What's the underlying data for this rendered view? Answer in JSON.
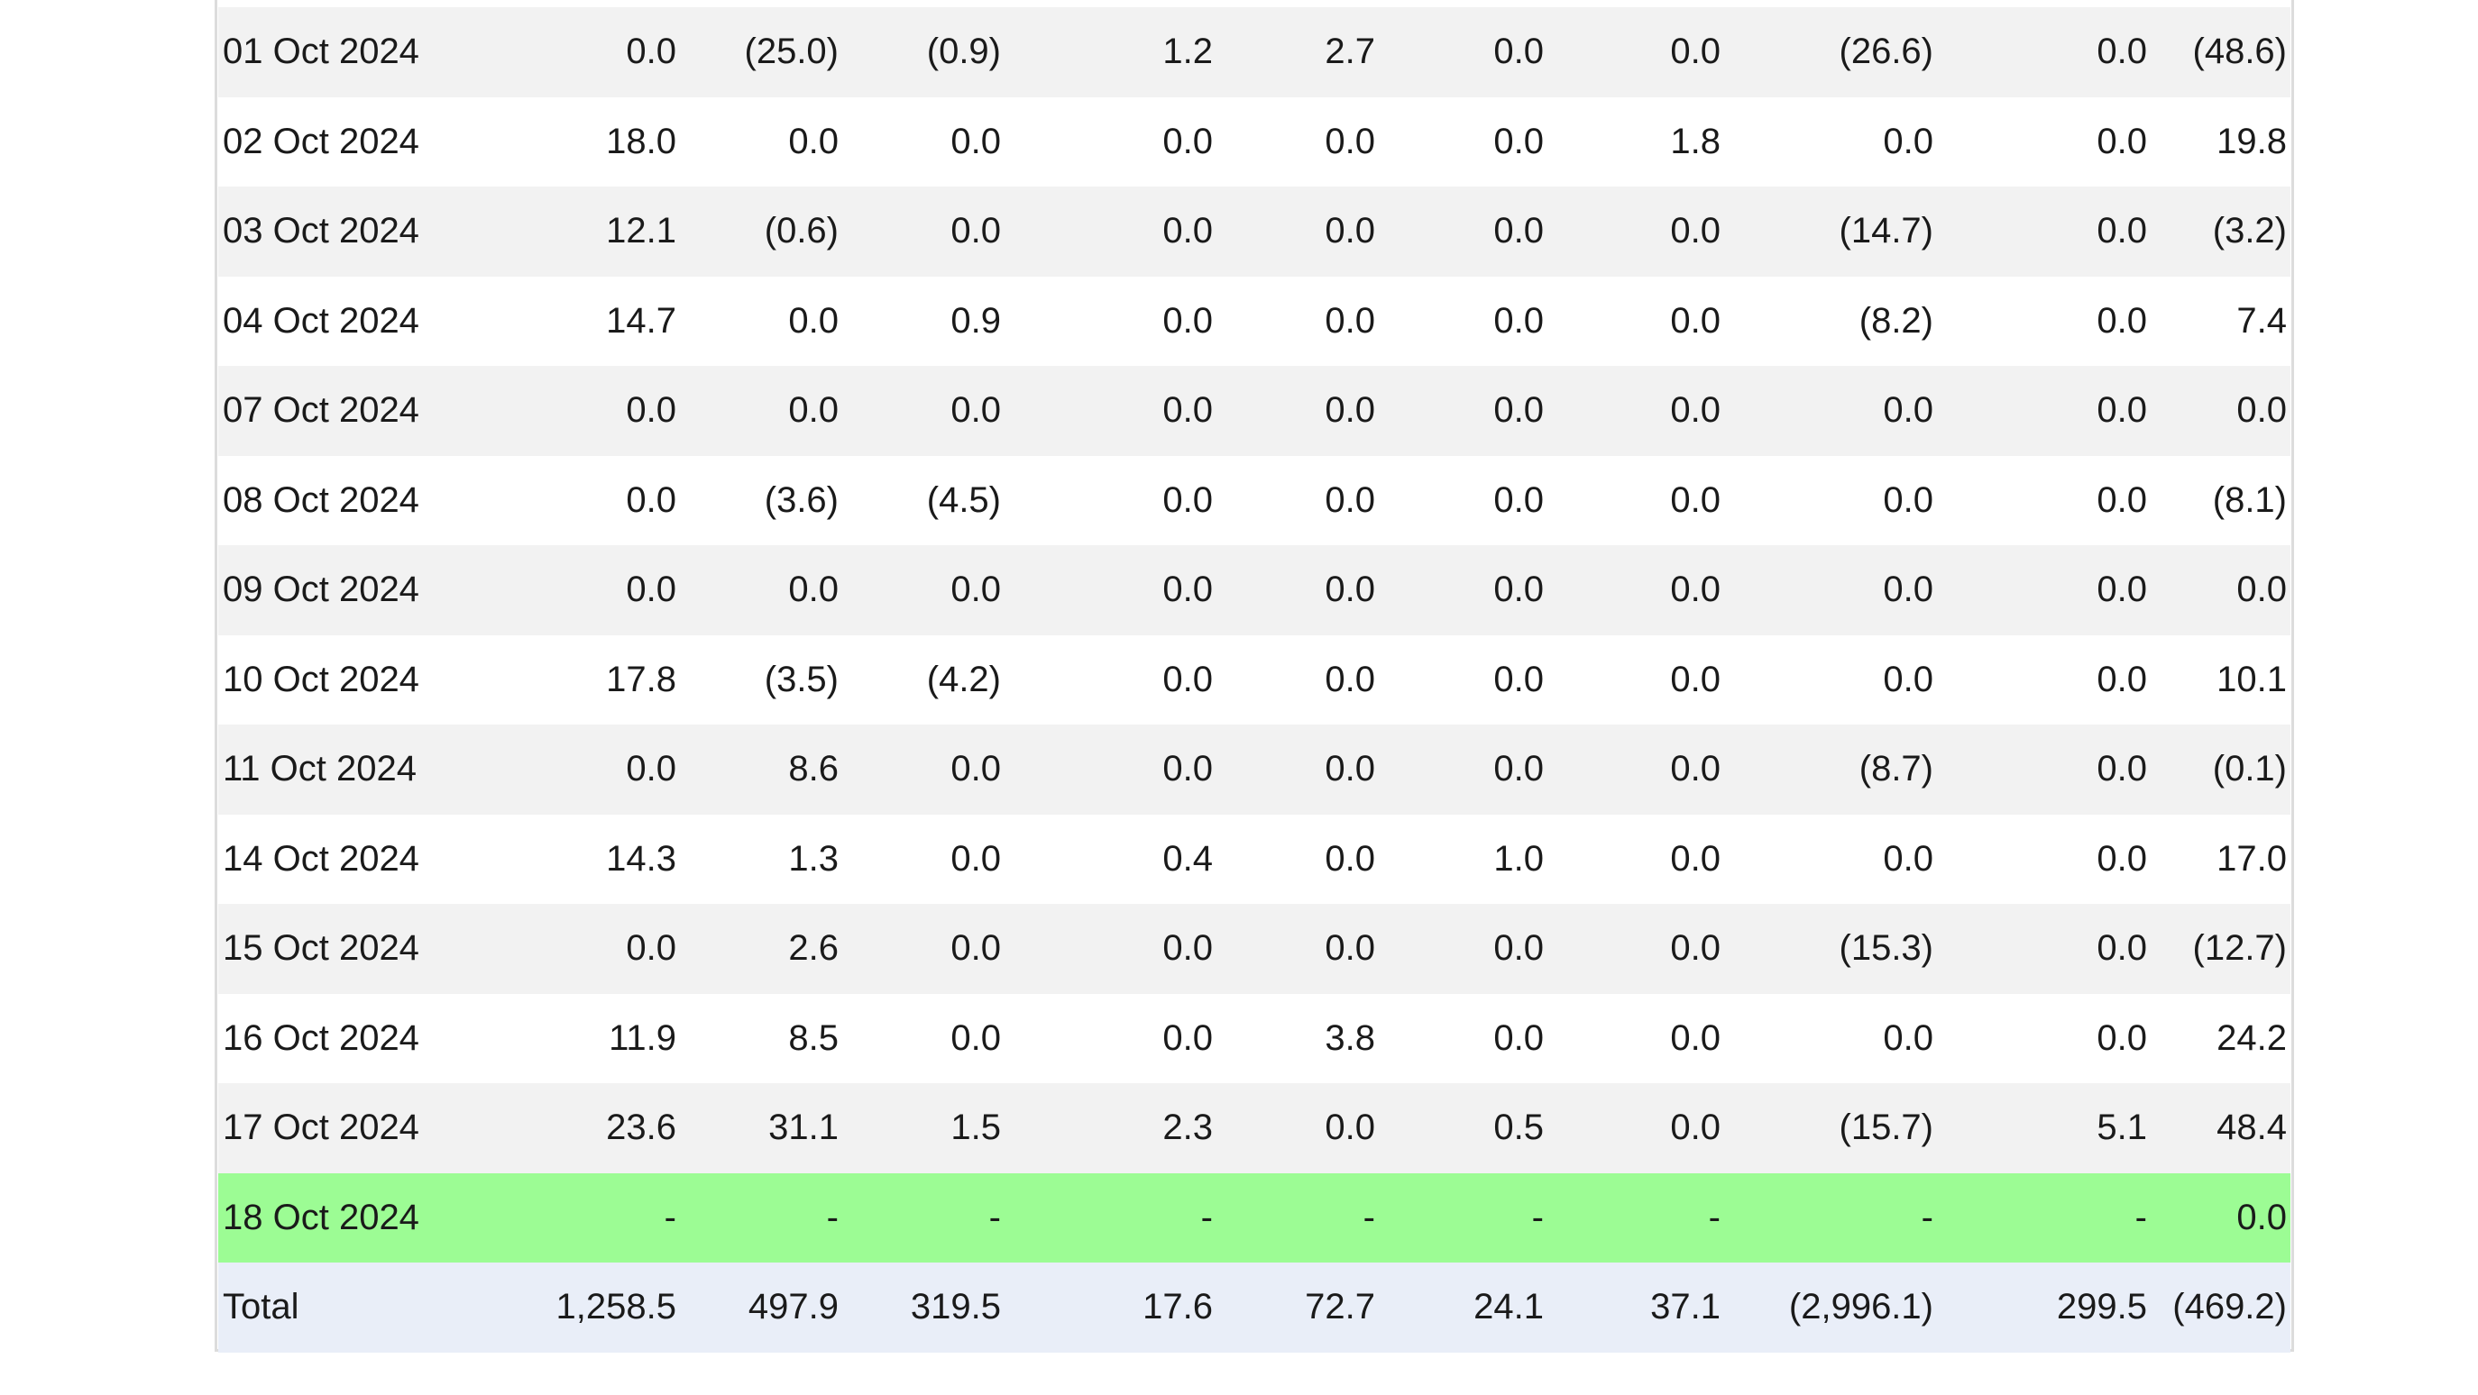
{
  "colors": {
    "negative_text": "#ee1111",
    "stripe_row": "#f2f2f2",
    "highlight_row": "#9cfc94",
    "total_row": "#e9eef8"
  },
  "rows": [
    {
      "date": "01 Oct 2024",
      "values": [
        "0.0",
        "(25.0)",
        "(0.9)",
        "1.2",
        "2.7",
        "0.0",
        "0.0",
        "(26.6)",
        "0.0",
        "(48.6)"
      ]
    },
    {
      "date": "02 Oct 2024",
      "values": [
        "18.0",
        "0.0",
        "0.0",
        "0.0",
        "0.0",
        "0.0",
        "1.8",
        "0.0",
        "0.0",
        "19.8"
      ]
    },
    {
      "date": "03 Oct 2024",
      "values": [
        "12.1",
        "(0.6)",
        "0.0",
        "0.0",
        "0.0",
        "0.0",
        "0.0",
        "(14.7)",
        "0.0",
        "(3.2)"
      ]
    },
    {
      "date": "04 Oct 2024",
      "values": [
        "14.7",
        "0.0",
        "0.9",
        "0.0",
        "0.0",
        "0.0",
        "0.0",
        "(8.2)",
        "0.0",
        "7.4"
      ]
    },
    {
      "date": "07 Oct 2024",
      "values": [
        "0.0",
        "0.0",
        "0.0",
        "0.0",
        "0.0",
        "0.0",
        "0.0",
        "0.0",
        "0.0",
        "0.0"
      ]
    },
    {
      "date": "08 Oct 2024",
      "values": [
        "0.0",
        "(3.6)",
        "(4.5)",
        "0.0",
        "0.0",
        "0.0",
        "0.0",
        "0.0",
        "0.0",
        "(8.1)"
      ]
    },
    {
      "date": "09 Oct 2024",
      "values": [
        "0.0",
        "0.0",
        "0.0",
        "0.0",
        "0.0",
        "0.0",
        "0.0",
        "0.0",
        "0.0",
        "0.0"
      ]
    },
    {
      "date": "10 Oct 2024",
      "values": [
        "17.8",
        "(3.5)",
        "(4.2)",
        "0.0",
        "0.0",
        "0.0",
        "0.0",
        "0.0",
        "0.0",
        "10.1"
      ]
    },
    {
      "date": "11 Oct 2024",
      "values": [
        "0.0",
        "8.6",
        "0.0",
        "0.0",
        "0.0",
        "0.0",
        "0.0",
        "(8.7)",
        "0.0",
        "(0.1)"
      ]
    },
    {
      "date": "14 Oct 2024",
      "values": [
        "14.3",
        "1.3",
        "0.0",
        "0.4",
        "0.0",
        "1.0",
        "0.0",
        "0.0",
        "0.0",
        "17.0"
      ]
    },
    {
      "date": "15 Oct 2024",
      "values": [
        "0.0",
        "2.6",
        "0.0",
        "0.0",
        "0.0",
        "0.0",
        "0.0",
        "(15.3)",
        "0.0",
        "(12.7)"
      ]
    },
    {
      "date": "16 Oct 2024",
      "values": [
        "11.9",
        "8.5",
        "0.0",
        "0.0",
        "3.8",
        "0.0",
        "0.0",
        "0.0",
        "0.0",
        "24.2"
      ]
    },
    {
      "date": "17 Oct 2024",
      "values": [
        "23.6",
        "31.1",
        "1.5",
        "2.3",
        "0.0",
        "0.5",
        "0.0",
        "(15.7)",
        "5.1",
        "48.4"
      ]
    },
    {
      "date": "18 Oct 2024",
      "values": [
        "-",
        "-",
        "-",
        "-",
        "-",
        "-",
        "-",
        "-",
        "-",
        "0.0"
      ],
      "highlighted": true
    }
  ],
  "total": {
    "label": "Total",
    "values": [
      "1,258.5",
      "497.9",
      "319.5",
      "17.6",
      "72.7",
      "24.1",
      "37.1",
      "(2,996.1)",
      "299.5",
      "(469.2)"
    ]
  }
}
